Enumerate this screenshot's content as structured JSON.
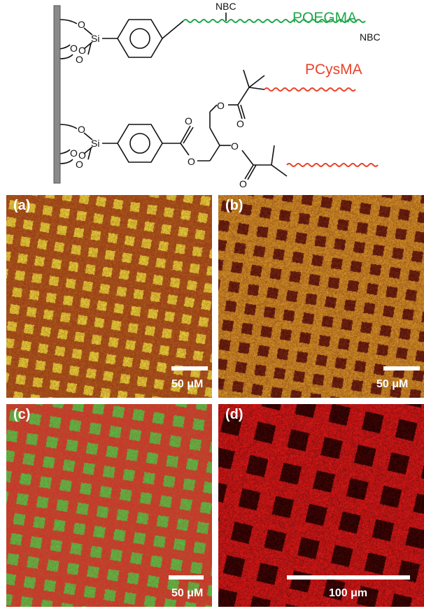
{
  "scheme": {
    "atom_si": "Si",
    "atom_o": "O",
    "end_group_top": "NBC",
    "end_group_right": "NBC",
    "polymer_1": "POEGMA",
    "polymer_2": "PCysMA",
    "polymer_1_color": "#1fa84a",
    "polymer_2_color": "#e8432b"
  },
  "panels": [
    {
      "label": "(a)",
      "scale": "50 μM",
      "scheme": "yellow-on-red",
      "fill_kind": "square",
      "period": 24.5,
      "angle": -9
    },
    {
      "label": "(b)",
      "scale": "50 μM",
      "scheme": "dark-squares-yellow-grid",
      "fill_kind": "grid",
      "period": 28,
      "angle": -9
    },
    {
      "label": "(c)",
      "scale": "50 μM",
      "scheme": "red-squares-green-grid",
      "fill_kind": "square",
      "period": 29,
      "angle": -9
    },
    {
      "label": "(d)",
      "scale": "100 μm",
      "scheme": "dark-squares-red-grid",
      "fill_kind": "grid",
      "period": 49,
      "angle": -13
    }
  ]
}
